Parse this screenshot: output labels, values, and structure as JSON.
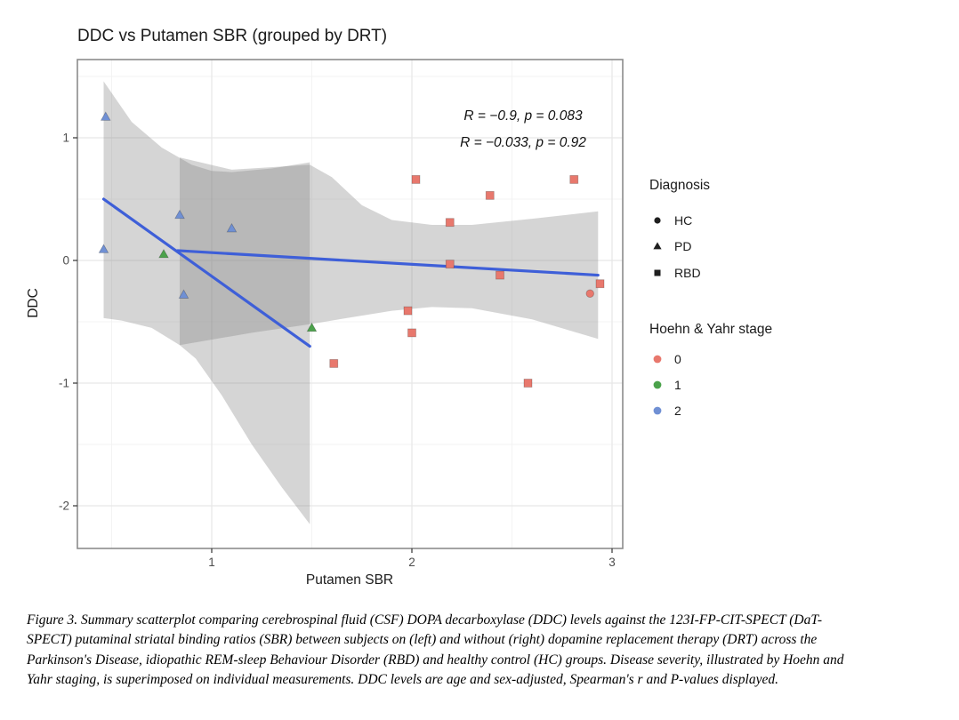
{
  "figure": {
    "title": "DDC vs Putamen SBR (grouped by DRT)",
    "caption_lines": [
      "Figure 3. Summary scatterplot comparing cerebrospinal fluid (CSF) DOPA decarboxylase (DDC) levels against the 123I-FP-CIT-SPECT (DaT-",
      "SPECT) putaminal striatal binding ratios (SBR) between subjects on (left) and without (right) dopamine replacement therapy (DRT) across the",
      "Parkinson's Disease, idiopathic REM-sleep Behaviour Disorder (RBD) and healthy control (HC) groups. Disease severity, illustrated by Hoehn and",
      "Yahr staging, is superimposed on individual measurements. DDC levels are age and sex-adjusted, Spearman's r and P-values displayed."
    ]
  },
  "annotations": {
    "line1": "R = −0.9, p = 0.083",
    "line2": "R = −0.033, p = 0.92"
  },
  "legend": {
    "diagnosis": {
      "title": "Diagnosis",
      "items": [
        {
          "label": "HC",
          "shape": "circle"
        },
        {
          "label": "PD",
          "shape": "triangle"
        },
        {
          "label": "RBD",
          "shape": "square"
        }
      ]
    },
    "hoehn_yahr": {
      "title": "Hoehn & Yahr stage",
      "items": [
        {
          "label": "0",
          "color": "#E8786D"
        },
        {
          "label": "1",
          "color": "#4BA24B"
        },
        {
          "label": "2",
          "color": "#7090D4"
        }
      ]
    }
  },
  "colors": {
    "diagnosis_glyph": "#1f1f1f",
    "hy0": "#E8786D",
    "hy1": "#4BA24B",
    "hy2": "#7090D4",
    "smooth_line": "#3E5FD8",
    "ribbon": "rgba(125,125,125,0.32)",
    "panel_border": "#8c8c8c",
    "grid_major": "#e7e7e7",
    "grid_minor": "#f3f3f3",
    "tick": "#333333",
    "tick_label": "#4d4d4d"
  },
  "chart_data": {
    "type": "scatter",
    "title": "DDC vs Putamen SBR (grouped by DRT)",
    "xlabel": "Putamen SBR",
    "ylabel": "DDC",
    "xlim": [
      0.33,
      3.05
    ],
    "ylim": [
      -2.35,
      1.64
    ],
    "x_ticks": [
      1,
      2,
      3
    ],
    "y_ticks": [
      1,
      0,
      -1,
      -2
    ],
    "x_minor": [
      0.5,
      1.5,
      2.5
    ],
    "y_minor": [
      1.5,
      0.5,
      -0.5,
      -1.5
    ],
    "grid": true,
    "legend_position": "right",
    "correlations": [
      {
        "group": "on DRT",
        "R": -0.9,
        "p": 0.083
      },
      {
        "group": "without DRT",
        "R": -0.033,
        "p": 0.92
      }
    ],
    "series": [
      {
        "name": "PD, Hoehn & Yahr 2",
        "diagnosis": "PD",
        "hy_stage": 2,
        "shape": "triangle",
        "color": "#7090D4",
        "points": [
          [
            0.47,
            1.17
          ],
          [
            0.46,
            0.09
          ],
          [
            0.84,
            0.37
          ],
          [
            1.1,
            0.26
          ],
          [
            0.86,
            -0.28
          ]
        ]
      },
      {
        "name": "PD, Hoehn & Yahr 1",
        "diagnosis": "PD",
        "hy_stage": 1,
        "shape": "triangle",
        "color": "#4BA24B",
        "points": [
          [
            0.76,
            0.05
          ],
          [
            1.5,
            -0.55
          ]
        ]
      },
      {
        "name": "RBD, Hoehn & Yahr 0",
        "diagnosis": "RBD",
        "hy_stage": 0,
        "shape": "square",
        "color": "#E8786D",
        "points": [
          [
            2.02,
            0.66
          ],
          [
            2.81,
            0.66
          ],
          [
            2.39,
            0.53
          ],
          [
            2.19,
            0.31
          ],
          [
            2.19,
            -0.03
          ],
          [
            2.44,
            -0.12
          ],
          [
            2.94,
            -0.19
          ],
          [
            1.98,
            -0.41
          ],
          [
            2.0,
            -0.59
          ],
          [
            1.61,
            -0.84
          ],
          [
            2.58,
            -1.0
          ]
        ]
      },
      {
        "name": "HC, Hoehn & Yahr 0",
        "diagnosis": "HC",
        "hy_stage": 0,
        "shape": "circle",
        "color": "#E8786D",
        "points": [
          [
            2.89,
            -0.27
          ]
        ]
      }
    ],
    "regression_lines": [
      {
        "name": "on DRT",
        "from": [
          0.46,
          0.5
        ],
        "to": [
          1.49,
          -0.7
        ]
      },
      {
        "name": "without DRT",
        "from": [
          0.83,
          0.08
        ],
        "to": [
          2.93,
          -0.12
        ]
      }
    ],
    "ribbons": [
      {
        "name": "on DRT CI",
        "polygon": [
          [
            0.46,
            1.46
          ],
          [
            0.6,
            1.13
          ],
          [
            0.75,
            0.92
          ],
          [
            0.9,
            0.78
          ],
          [
            1.0,
            0.73
          ],
          [
            1.1,
            0.72
          ],
          [
            1.3,
            0.75
          ],
          [
            1.49,
            0.8
          ],
          [
            1.49,
            -2.15
          ],
          [
            1.35,
            -1.85
          ],
          [
            1.2,
            -1.5
          ],
          [
            1.05,
            -1.1
          ],
          [
            0.92,
            -0.8
          ],
          [
            0.84,
            -0.69
          ],
          [
            0.7,
            -0.55
          ],
          [
            0.55,
            -0.49
          ],
          [
            0.46,
            -0.47
          ]
        ]
      },
      {
        "name": "without DRT CI",
        "polygon": [
          [
            0.84,
            0.84
          ],
          [
            1.1,
            0.74
          ],
          [
            1.49,
            0.78
          ],
          [
            1.6,
            0.68
          ],
          [
            1.75,
            0.45
          ],
          [
            1.9,
            0.33
          ],
          [
            2.1,
            0.29
          ],
          [
            2.3,
            0.29
          ],
          [
            2.6,
            0.34
          ],
          [
            2.93,
            0.4
          ],
          [
            2.93,
            -0.64
          ],
          [
            2.6,
            -0.48
          ],
          [
            2.3,
            -0.39
          ],
          [
            2.1,
            -0.38
          ],
          [
            1.9,
            -0.41
          ],
          [
            1.6,
            -0.49
          ],
          [
            1.49,
            -0.52
          ],
          [
            1.2,
            -0.59
          ],
          [
            0.84,
            -0.69
          ]
        ]
      }
    ]
  }
}
